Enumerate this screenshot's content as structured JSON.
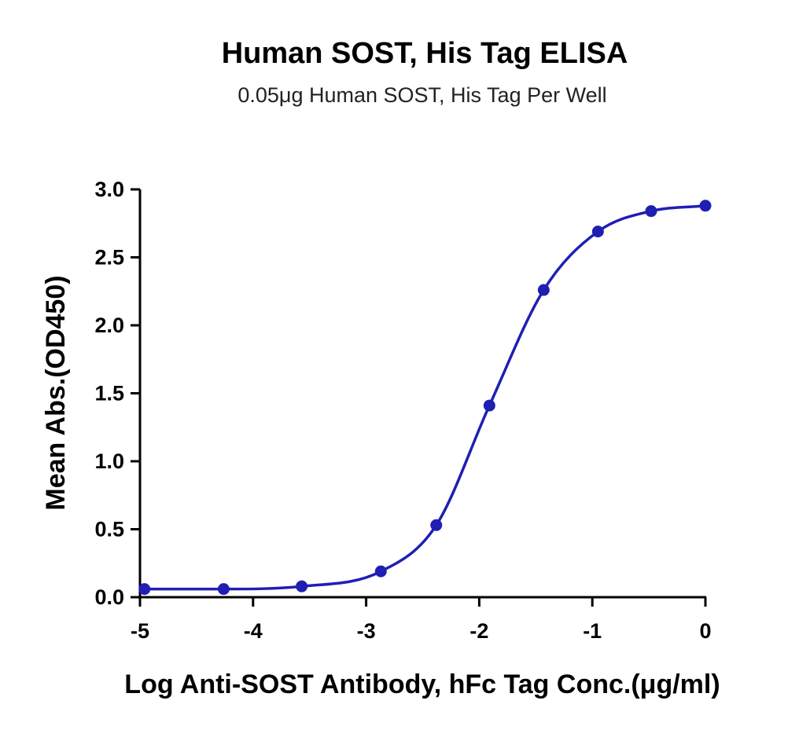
{
  "chart_data": {
    "type": "scatter",
    "title": "Human SOST, His Tag ELISA",
    "subtitle": "0.05μg Human SOST, His Tag Per Well",
    "xlabel": "Log Anti-SOST Antibody, hFc Tag Conc.(μg/ml)",
    "ylabel": "Mean Abs.(OD450)",
    "xlim": [
      -5,
      0
    ],
    "ylim": [
      0,
      3.0
    ],
    "xticks": [
      "-5",
      "-4",
      "-3",
      "-2",
      "-1",
      "0"
    ],
    "yticks": [
      "0.0",
      "0.5",
      "1.0",
      "1.5",
      "2.0",
      "2.5",
      "3.0"
    ],
    "grid": false,
    "color": "#1f1fb4",
    "series": [
      {
        "x": [
          -4.96,
          -4.26,
          -3.57,
          -2.87,
          -2.38,
          -1.91,
          -1.43,
          -0.95,
          -0.48,
          0.0
        ],
        "y": [
          0.06,
          0.06,
          0.08,
          0.19,
          0.53,
          1.41,
          2.26,
          2.69,
          2.84,
          2.88
        ],
        "fit": "four-parameter logistic"
      }
    ]
  }
}
